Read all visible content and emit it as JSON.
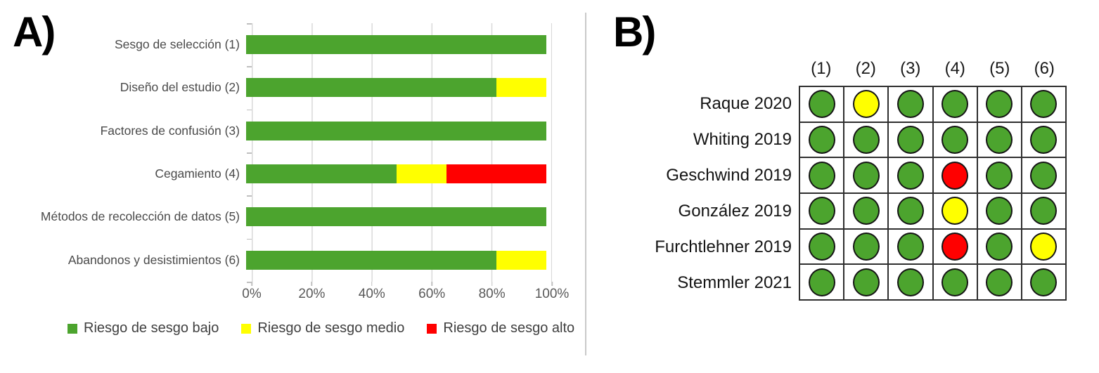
{
  "panel_a_label": "A)",
  "panel_b_label": "B)",
  "colors": {
    "low": "#4ca42e",
    "medium": "#ffff00",
    "high": "#ff0000",
    "gridline": "#d9d9d9",
    "axis_text": "#595959"
  },
  "chart_data": [
    {
      "panel": "A",
      "type": "bar",
      "stacked": true,
      "orientation": "horizontal",
      "title": "",
      "xlabel": "",
      "ylabel": "",
      "categories": [
        "Sesgo de selección (1)",
        "Diseño del estudio (2)",
        "Factores de confusión (3)",
        "Cegamiento (4)",
        "Métodos de recolección de datos (5)",
        "Abandonos y desistimientos (6)"
      ],
      "series": [
        {
          "name": "Riesgo de sesgo bajo",
          "risk": "low",
          "values": [
            100,
            83.3,
            100,
            50,
            100,
            83.3
          ]
        },
        {
          "name": "Riesgo de sesgo medio",
          "risk": "medium",
          "values": [
            0,
            16.7,
            0,
            16.7,
            0,
            16.7
          ]
        },
        {
          "name": "Riesgo de sesgo alto",
          "risk": "high",
          "values": [
            0,
            0,
            0,
            33.3,
            0,
            0
          ]
        }
      ],
      "xlim": [
        0,
        100
      ],
      "x_ticks": [
        "0%",
        "20%",
        "40%",
        "60%",
        "80%",
        "100%"
      ],
      "grid": true,
      "legend_position": "bottom"
    },
    {
      "panel": "B",
      "type": "table",
      "columns": [
        "(1)",
        "(2)",
        "(3)",
        "(4)",
        "(5)",
        "(6)"
      ],
      "rows": [
        {
          "study": "Raque 2020",
          "ratings": [
            "low",
            "medium",
            "low",
            "low",
            "low",
            "low"
          ]
        },
        {
          "study": "Whiting 2019",
          "ratings": [
            "low",
            "low",
            "low",
            "low",
            "low",
            "low"
          ]
        },
        {
          "study": "Geschwind 2019",
          "ratings": [
            "low",
            "low",
            "low",
            "high",
            "low",
            "low"
          ]
        },
        {
          "study": "González 2019",
          "ratings": [
            "low",
            "low",
            "low",
            "medium",
            "low",
            "low"
          ]
        },
        {
          "study": "Furchtlehner 2019",
          "ratings": [
            "low",
            "low",
            "low",
            "high",
            "low",
            "medium"
          ]
        },
        {
          "study": "Stemmler 2021",
          "ratings": [
            "low",
            "low",
            "low",
            "low",
            "low",
            "low"
          ]
        }
      ]
    }
  ]
}
